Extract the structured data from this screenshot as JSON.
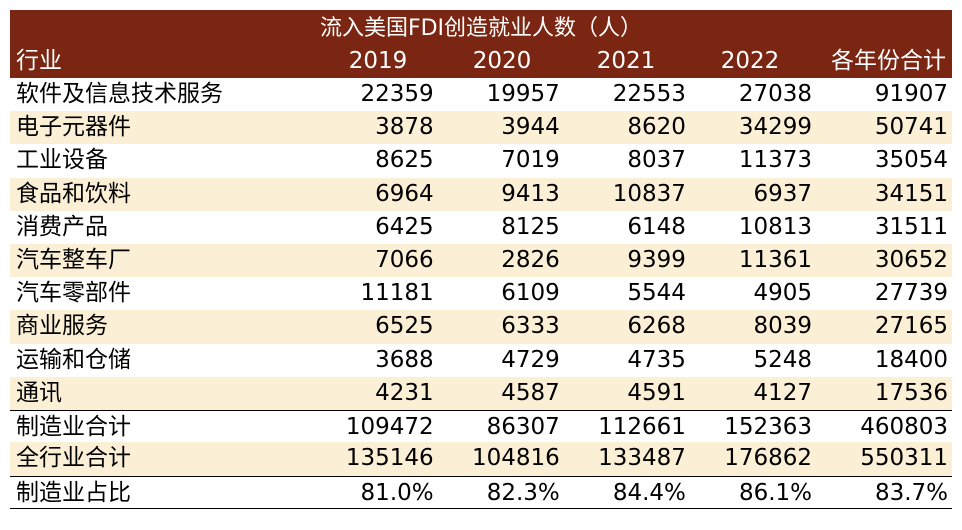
{
  "title": "流入美国FDI创造就业人数（人）",
  "headers": [
    "行业",
    "2019",
    "2020",
    "2021",
    "2022",
    "各年份合计"
  ],
  "rows": [
    {
      "label": "软件及信息技术服务",
      "values": [
        "22359",
        "19957",
        "22553",
        "27038",
        "91907"
      ]
    },
    {
      "label": "电子元器件",
      "values": [
        "3878",
        "3944",
        "8620",
        "34299",
        "50741"
      ]
    },
    {
      "label": "工业设备",
      "values": [
        "8625",
        "7019",
        "8037",
        "11373",
        "35054"
      ]
    },
    {
      "label": "食品和饮料",
      "values": [
        "6964",
        "9413",
        "10837",
        "6937",
        "34151"
      ]
    },
    {
      "label": "消费产品",
      "values": [
        "6425",
        "8125",
        "6148",
        "10813",
        "31511"
      ]
    },
    {
      "label": "汽车整车厂",
      "values": [
        "7066",
        "2826",
        "9399",
        "11361",
        "30652"
      ]
    },
    {
      "label": "汽车零部件",
      "values": [
        "11181",
        "6109",
        "5544",
        "4905",
        "27739"
      ]
    },
    {
      "label": "商业服务",
      "values": [
        "6525",
        "6333",
        "6268",
        "8039",
        "27165"
      ]
    },
    {
      "label": "运输和仓储",
      "values": [
        "3688",
        "4729",
        "4735",
        "5248",
        "18400"
      ]
    },
    {
      "label": "通讯",
      "values": [
        "4231",
        "4587",
        "4591",
        "4127",
        "17536"
      ]
    }
  ],
  "totals": [
    {
      "label": "制造业合计",
      "values": [
        "109472",
        "86307",
        "112661",
        "152363",
        "460803"
      ]
    },
    {
      "label": "全行业合计",
      "values": [
        "135146",
        "104816",
        "133487",
        "176862",
        "550311"
      ]
    }
  ],
  "ratio": {
    "label": "制造业占比",
    "values": [
      "81.0%",
      "82.3%",
      "84.4%",
      "86.1%",
      "83.7%"
    ]
  },
  "colors": {
    "header_bg": "#7a2612",
    "header_text": "#ffffff",
    "stripe": "#fbefd6",
    "rule": "#000000"
  }
}
